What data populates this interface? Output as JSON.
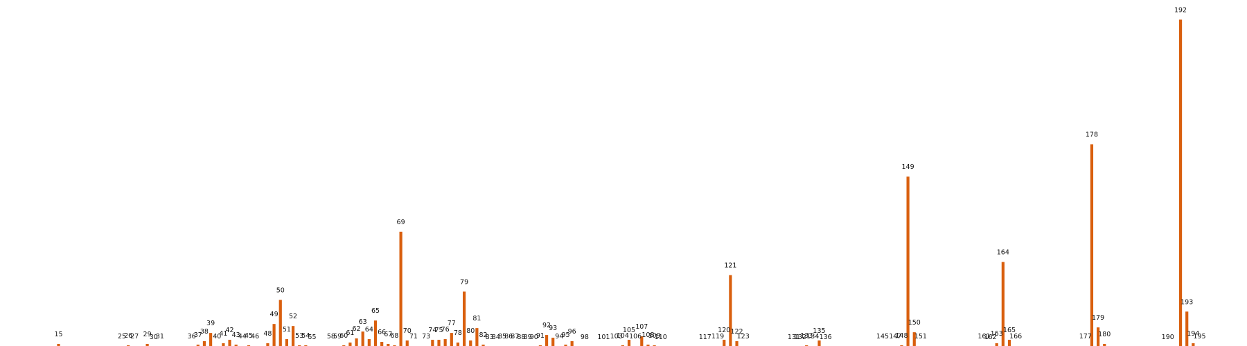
{
  "chart_data": {
    "type": "bar",
    "title": "",
    "xlabel": "",
    "ylabel": "",
    "grid": false,
    "axes_visible": false,
    "bar_color": "#d95f0e",
    "categories": [
      "15",
      "25",
      "26",
      "27",
      "29",
      "30",
      "31",
      "36",
      "37",
      "38",
      "39",
      "40",
      "41",
      "42",
      "43",
      "44",
      "45",
      "46",
      "48",
      "49",
      "50",
      "51",
      "52",
      "53",
      "54",
      "55",
      "58",
      "59",
      "60",
      "61",
      "62",
      "63",
      "64",
      "65",
      "66",
      "67",
      "68",
      "69",
      "70",
      "71",
      "73",
      "74",
      "75",
      "76",
      "77",
      "78",
      "79",
      "80",
      "81",
      "82",
      "83",
      "84",
      "85",
      "86",
      "87",
      "88",
      "89",
      "90",
      "91",
      "92",
      "93",
      "94",
      "95",
      "96",
      "98",
      "101",
      "103",
      "104",
      "105",
      "106",
      "107",
      "108",
      "109",
      "110",
      "117",
      "119",
      "120",
      "121",
      "122",
      "123",
      "131",
      "132",
      "133",
      "134",
      "135",
      "136",
      "145",
      "147",
      "148",
      "149",
      "150",
      "151",
      "161",
      "162",
      "163",
      "164",
      "165",
      "166",
      "177",
      "178",
      "179",
      "180",
      "190",
      "192",
      "193",
      "194",
      "195"
    ],
    "values": [
      4,
      1,
      2,
      1,
      4,
      0,
      1,
      1,
      3,
      8,
      20,
      1,
      5,
      10,
      3,
      1,
      2,
      1,
      5,
      33,
      68,
      11,
      30,
      2,
      2,
      0,
      1,
      1,
      2,
      6,
      12,
      22,
      11,
      38,
      7,
      4,
      2,
      167,
      9,
      1,
      1,
      10,
      10,
      11,
      20,
      6,
      80,
      9,
      27,
      3,
      0,
      0,
      1,
      1,
      1,
      0,
      0,
      0,
      2,
      17,
      13,
      1,
      3,
      8,
      0,
      0,
      1,
      2,
      10,
      1,
      15,
      3,
      2,
      0,
      0,
      1,
      10,
      104,
      8,
      1,
      0,
      0,
      2,
      1,
      9,
      0,
      1,
      1,
      2,
      247,
      21,
      1,
      1,
      0,
      5,
      123,
      10,
      1,
      1,
      294,
      28,
      4,
      0,
      475,
      51,
      5,
      1
    ],
    "ylim": [
      0,
      500
    ]
  }
}
